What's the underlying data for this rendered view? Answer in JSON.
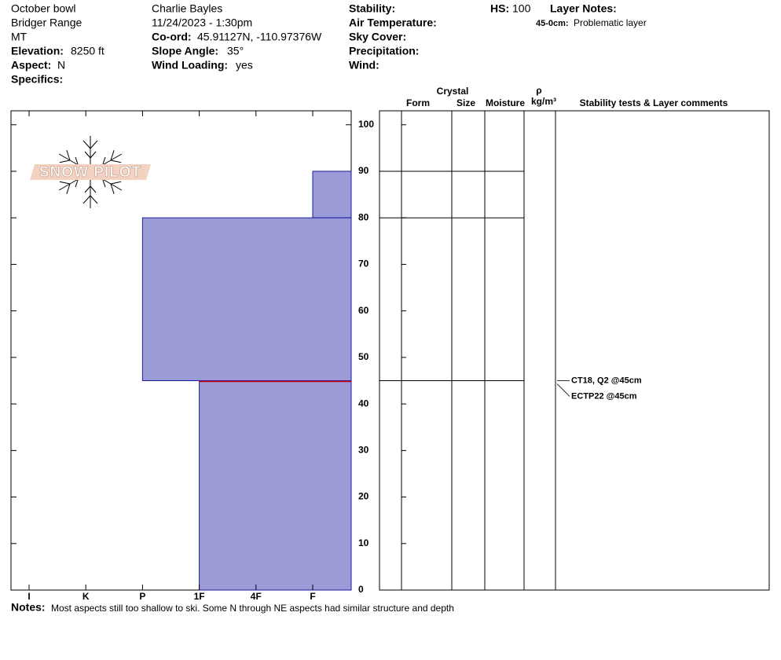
{
  "header": {
    "location": "October bowl",
    "range": "Bridger Range",
    "state": "MT",
    "elevation_label": "Elevation:",
    "elevation": "8250 ft",
    "aspect_label": "Aspect:",
    "aspect": "N",
    "specifics_label": "Specifics:",
    "observer": "Charlie  Bayles",
    "datetime": "11/24/2023 - 1:30pm",
    "coord_label": "Co-ord:",
    "coord": "45.91127N, -110.97376W",
    "slope_label": "Slope Angle:",
    "slope": "35°",
    "wind_loading_label": "Wind Loading:",
    "wind_loading": "yes",
    "stability_label": "Stability:",
    "air_temp_label": "Air Temperature:",
    "sky_label": "Sky Cover:",
    "precip_label": "Precipitation:",
    "wind_label": "Wind:",
    "hs_label": "HS:",
    "hs": 100,
    "layer_notes_label": "Layer Notes:",
    "layer_note_range": "45-0cm:",
    "layer_note": "Problematic layer",
    "logo": "SNOW PILOT"
  },
  "chart_data": {
    "type": "snow-profile",
    "categories": [
      "I",
      "K",
      "P",
      "1F",
      "4F",
      "F"
    ],
    "layers": [
      {
        "top": 90,
        "bottom": 80,
        "hardness": "F"
      },
      {
        "top": 80,
        "bottom": 45,
        "hardness": "P"
      },
      {
        "top": 45,
        "bottom": 0,
        "hardness": "1F"
      }
    ],
    "color": "#9b9bd8",
    "weak_layer": 45,
    "weak_layer_color": "#cc0000",
    "ylim": [
      0,
      103
    ],
    "yticks": [
      0,
      10,
      20,
      30,
      40,
      50,
      60,
      70,
      80,
      90,
      100
    ],
    "tests": [
      {
        "label": "CT18, Q2 @45cm",
        "depth": 45
      },
      {
        "label": "ECTP22 @45cm",
        "depth": 45
      }
    ]
  },
  "table": {
    "crystal": "Crystal",
    "form": "Form",
    "size": "Size",
    "moisture": "Moisture",
    "density_symbol": "ρ",
    "density_unit": "kg/m³",
    "comments": "Stability tests & Layer comments"
  },
  "notes_label": "Notes:",
  "notes": "Most aspects still too shallow to ski. Some N through NE aspects had similar structure and depth"
}
